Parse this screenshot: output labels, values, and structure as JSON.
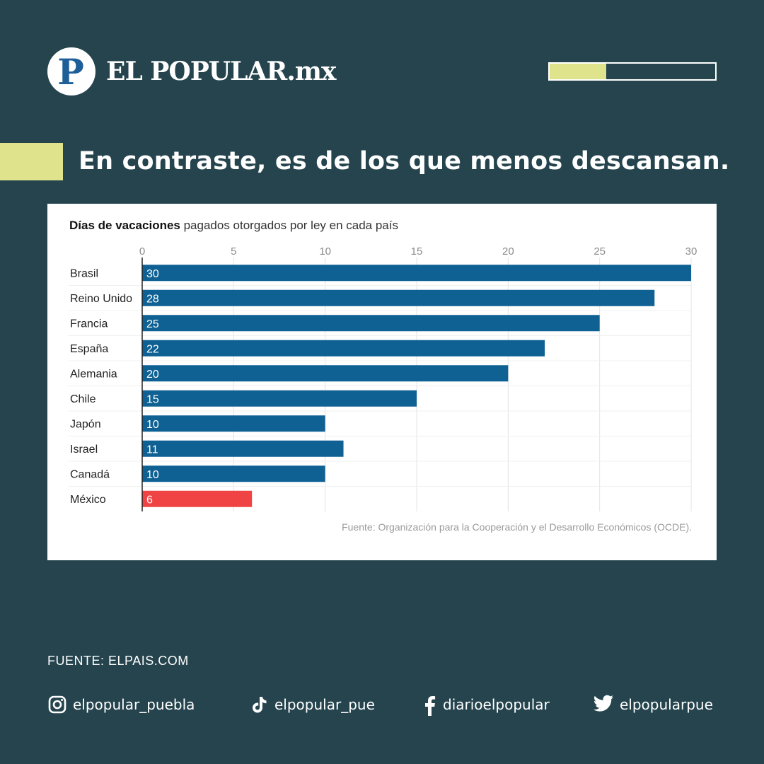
{
  "brand": {
    "logo_letter": "P",
    "name": "EL POPULAR.mx"
  },
  "progress": {
    "fraction": 0.34,
    "fill_color": "#dfe48c"
  },
  "headline": {
    "text": "En contraste, es de los que menos descansan.",
    "accent_color": "#dfe48c"
  },
  "chart": {
    "title_bold": "Días de vacaciones",
    "title_rest": " pagados otorgados por ley en cada país",
    "source": "Fuente: Organización para la Cooperación y el Desarrollo Económicos (OCDE)."
  },
  "chart_data": {
    "type": "bar",
    "orientation": "horizontal",
    "title": "Días de vacaciones pagados otorgados por ley en cada país",
    "categories": [
      "Brasil",
      "Reino Unido",
      "Francia",
      "España",
      "Alemania",
      "Chile",
      "Japón",
      "Israel",
      "Canadá",
      "México"
    ],
    "values": [
      30,
      28,
      25,
      22,
      20,
      15,
      10,
      11,
      10,
      6
    ],
    "xlim": [
      0,
      30
    ],
    "xticks": [
      0,
      5,
      10,
      15,
      20,
      25,
      30
    ],
    "grid": true,
    "bar_color": "#0f6193",
    "highlight": {
      "category": "México",
      "color": "#f04444"
    }
  },
  "footer": {
    "source_label": "FUENTE: ELPAIS.COM",
    "social": [
      {
        "icon": "instagram-icon",
        "handle": "elpopular_puebla"
      },
      {
        "icon": "tiktok-icon",
        "handle": "elpopular_pue"
      },
      {
        "icon": "facebook-icon",
        "handle": "diarioelpopular"
      },
      {
        "icon": "twitter-icon",
        "handle": "elpopularpue"
      }
    ]
  }
}
